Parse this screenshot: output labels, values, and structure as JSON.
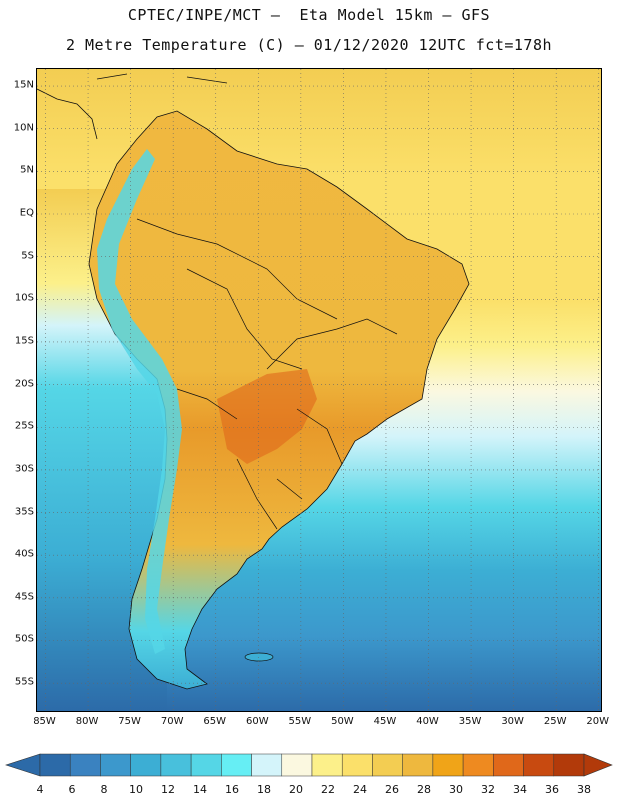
{
  "header": {
    "title_line1": "CPTEC/INPE/MCT –  Eta Model 15km – GFS",
    "title_line2": "2 Metre Temperature (C) – 01/12/2020 12UTC fct=178h"
  },
  "map": {
    "lat_labels": [
      "15N",
      "10N",
      "5N",
      "EQ",
      "5S",
      "10S",
      "15S",
      "20S",
      "25S",
      "30S",
      "35S",
      "40S",
      "45S",
      "50S",
      "55S"
    ],
    "lon_labels": [
      "85W",
      "80W",
      "75W",
      "70W",
      "65W",
      "60W",
      "55W",
      "50W",
      "45W",
      "40W",
      "35W",
      "30W",
      "25W",
      "20W"
    ],
    "lat_values": [
      15,
      10,
      5,
      0,
      -5,
      -10,
      -15,
      -20,
      -25,
      -30,
      -35,
      -40,
      -45,
      -50,
      -55
    ],
    "lon_values": [
      -85,
      -80,
      -75,
      -70,
      -65,
      -60,
      -55,
      -50,
      -45,
      -40,
      -35,
      -30,
      -25,
      -20
    ],
    "extent": {
      "lon_min": -86,
      "lon_max": -19.5,
      "lat_max": 17,
      "lat_min": -58.5
    }
  },
  "colorbar": {
    "labels": [
      "4",
      "6",
      "8",
      "10",
      "12",
      "14",
      "16",
      "18",
      "20",
      "22",
      "24",
      "26",
      "28",
      "30",
      "32",
      "34",
      "36",
      "38"
    ],
    "colors": [
      "#2c6aa8",
      "#3a82c0",
      "#3c98cc",
      "#3caed4",
      "#48c0dc",
      "#55d6e6",
      "#66eef4",
      "#d4f4fa",
      "#fbf8e0",
      "#fcf08a",
      "#fbe06a",
      "#f3cd52",
      "#eeb83e",
      "#f0a418",
      "#ee8a20",
      "#e0681a",
      "#c84a10",
      "#b23a0a"
    ],
    "min_arrow_color": "#2c6aa8",
    "max_arrow_color": "#b23a0a"
  }
}
